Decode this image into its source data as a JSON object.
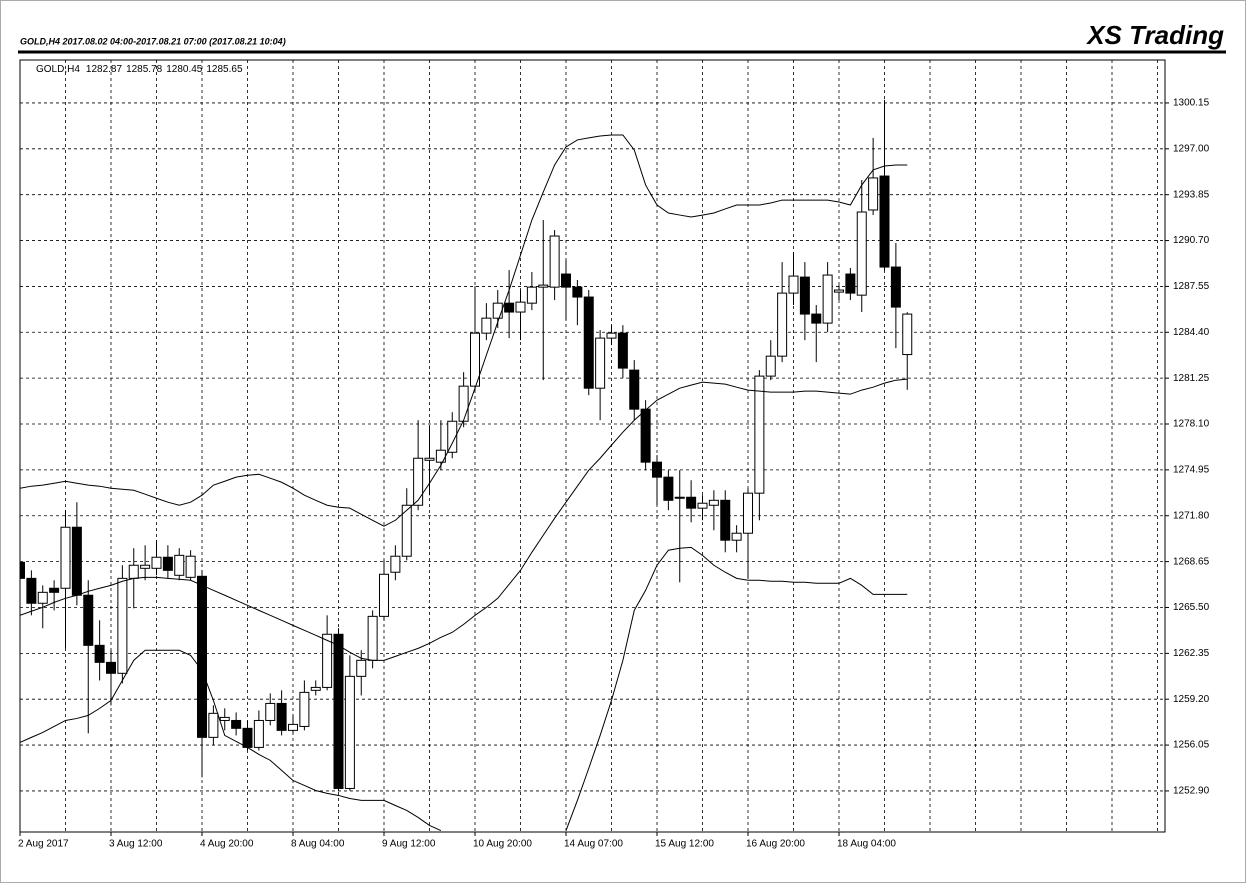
{
  "chart_data": {
    "type": "candlestick",
    "header": "GOLD,H4  2017.08.02 04:00-2017.08.21 07:00 (2017.08.21 10:04)",
    "brand": "XS Trading",
    "symbol": "GOLD,H4",
    "categories": [
      "2 Aug 2017",
      null,
      null,
      null,
      null,
      null,
      null,
      null,
      "3 Aug 12:00",
      null,
      null,
      null,
      null,
      null,
      null,
      null,
      "4 Aug 20:00",
      null,
      null,
      null,
      null,
      null,
      null,
      null,
      "8 Aug 04:00",
      null,
      null,
      null,
      null,
      null,
      null,
      null,
      "9 Aug 12:00",
      null,
      null,
      null,
      null,
      null,
      null,
      null,
      "10 Aug 20:00",
      null,
      null,
      null,
      null,
      null,
      null,
      null,
      "14 Aug 07:00",
      null,
      null,
      null,
      null,
      null,
      null,
      null,
      "15 Aug 12:00",
      null,
      null,
      null,
      null,
      null,
      null,
      null,
      "16 Aug 20:00",
      null,
      null,
      null,
      null,
      null,
      null,
      null,
      "18 Aug 04:00",
      null,
      null,
      null,
      null,
      null,
      null
    ],
    "open": [
      1268.6,
      1267.5,
      1265.79,
      1266.82,
      1266.82,
      1271.01,
      1266.34,
      1262.9,
      1261.73,
      1260.98,
      1267.5,
      1268.19,
      1268.19,
      1268.95,
      1267.71,
      1267.57,
      1267.64,
      1256.58,
      1257.74,
      1257.74,
      1257.2,
      1255.89,
      1257.74,
      1258.91,
      1257.06,
      1257.33,
      1259.81,
      1260.01,
      1263.66,
      1253.07,
      1260.77,
      1261.87,
      1264.89,
      1267.92,
      1269.02,
      1272.52,
      1275.61,
      1275.48,
      1276.16,
      1278.29,
      1280.7,
      1284.34,
      1285.37,
      1286.4,
      1285.79,
      1286.4,
      1287.5,
      1287.5,
      1288.4,
      1287.5,
      1286.82,
      1280.56,
      1284.0,
      1284.34,
      1281.8,
      1279.12,
      1275.48,
      1274.45,
      1273.0,
      1273.07,
      1272.32,
      1272.52,
      1272.86,
      1270.12,
      1270.6,
      1273.35,
      1281.39,
      1282.76,
      1287.09,
      1288.19,
      1285.65,
      1285.03,
      1287.16,
      1288.4,
      1286.95,
      1292.8,
      1295.13,
      1288.88,
      1282.87
    ],
    "high": [
      1269.08,
      1268.05,
      1267.02,
      1267.37,
      1272.18,
      1272.73,
      1267.37,
      1264.62,
      1262.56,
      1268.4,
      1269.57,
      1269.77,
      1270.12,
      1269.77,
      1269.57,
      1269.43,
      1268.05,
      1258.78,
      1258.57,
      1258.29,
      1257.74,
      1258.43,
      1259.6,
      1259.81,
      1258.09,
      1260.49,
      1260.49,
      1264.96,
      1264.07,
      1262.21,
      1262.56,
      1265.3,
      1268.74,
      1269.77,
      1273.69,
      1278.36,
      1278.02,
      1278.36,
      1278.91,
      1281.66,
      1287.57,
      1286.4,
      1287.3,
      1288.67,
      1287.3,
      1288.54,
      1292.11,
      1291.42,
      1289.36,
      1287.99,
      1287.3,
      1284.55,
      1284.89,
      1284.89,
      1282.49,
      1279.74,
      1275.96,
      1274.93,
      1274.93,
      1274.24,
      1273.21,
      1273.55,
      1273.55,
      1271.15,
      1273.69,
      1281.8,
      1283.86,
      1289.22,
      1289.91,
      1289.22,
      1286.27,
      1289.22,
      1287.64,
      1288.81,
      1294.86,
      1297.75,
      1300.36,
      1290.53,
      1285.78
    ],
    "low": [
      1265.99,
      1264.96,
      1264.07,
      1265.3,
      1262.69,
      1265.65,
      1256.85,
      1260.49,
      1258.78,
      1260.29,
      1265.44,
      1267.37,
      1267.71,
      1267.5,
      1267.37,
      1267.37,
      1253.83,
      1256.03,
      1257.06,
      1256.71,
      1255.68,
      1255.68,
      1257.4,
      1256.71,
      1256.85,
      1257.06,
      1259.46,
      1259.81,
      1252.93,
      1252.93,
      1259.46,
      1261.32,
      1264.62,
      1267.37,
      1268.74,
      1272.18,
      1273.21,
      1274.93,
      1275.75,
      1277.88,
      1280.43,
      1283.86,
      1284.69,
      1284.0,
      1283.86,
      1285.92,
      1281.11,
      1286.61,
      1285.24,
      1284.89,
      1280.08,
      1278.36,
      1283.52,
      1281.25,
      1278.36,
      1274.93,
      1272.52,
      1272.18,
      1267.23,
      1271.35,
      1271.49,
      1270.8,
      1269.29,
      1269.29,
      1267.5,
      1271.49,
      1281.11,
      1282.35,
      1286.27,
      1283.86,
      1282.35,
      1284.41,
      1286.61,
      1286.61,
      1285.79,
      1292.45,
      1288.67,
      1283.31,
      1280.45
    ],
    "close": [
      1267.5,
      1265.79,
      1266.54,
      1266.54,
      1271.01,
      1266.34,
      1262.9,
      1261.73,
      1260.98,
      1267.5,
      1268.4,
      1268.4,
      1268.95,
      1268.05,
      1269.08,
      1269.02,
      1256.58,
      1258.23,
      1257.95,
      1257.2,
      1255.89,
      1257.74,
      1258.91,
      1257.06,
      1257.47,
      1259.67,
      1260.01,
      1263.66,
      1253.07,
      1260.77,
      1261.87,
      1264.89,
      1267.78,
      1269.02,
      1272.52,
      1275.75,
      1275.75,
      1276.3,
      1278.29,
      1280.7,
      1284.34,
      1285.37,
      1286.4,
      1285.79,
      1286.47,
      1287.5,
      1287.64,
      1291.01,
      1287.5,
      1286.82,
      1280.56,
      1284.0,
      1284.34,
      1281.94,
      1279.12,
      1275.48,
      1274.45,
      1272.86,
      1273.07,
      1272.32,
      1272.66,
      1272.86,
      1270.12,
      1270.6,
      1273.35,
      1281.39,
      1282.76,
      1287.09,
      1288.26,
      1285.65,
      1285.03,
      1288.33,
      1287.3,
      1287.09,
      1292.66,
      1295.0,
      1288.88,
      1286.13,
      1285.65
    ],
    "up_color": "#ffffff",
    "down_color": "#000000",
    "overlays": [
      {
        "color": "#000000",
        "values": [
          1273.69,
          1273.83,
          1273.9,
          1274.03,
          1274.17,
          1274.03,
          1273.9,
          1273.83,
          1273.69,
          1273.62,
          1273.55,
          1273.28,
          1273.0,
          1272.73,
          1272.52,
          1272.73,
          1273.21,
          1273.9,
          1274.17,
          1274.45,
          1274.58,
          1274.65,
          1274.38,
          1274.1,
          1273.69,
          1273.21,
          1272.86,
          1272.52,
          1272.38,
          1272.32,
          1271.9,
          1271.49,
          1271.08,
          1271.49,
          1272.18,
          1272.86,
          1274.03,
          1275.27,
          1276.78,
          1278.36,
          1280.56,
          1282.83,
          1285.1,
          1287.3,
          1289.7,
          1292.11,
          1294.03,
          1295.89,
          1297.13,
          1297.61,
          1297.75,
          1297.88,
          1297.95,
          1297.95,
          1296.92,
          1294.51,
          1293.14,
          1292.59,
          1292.45,
          1292.32,
          1292.45,
          1292.59,
          1292.87,
          1293.14,
          1293.14,
          1293.14,
          1293.28,
          1293.48,
          1293.48,
          1293.48,
          1293.48,
          1293.48,
          1293.35,
          1293.14,
          1294.51,
          1295.55,
          1295.82,
          1295.89,
          1295.89
        ]
      },
      {
        "color": "#000000",
        "values": [
          1264.96,
          1265.24,
          1265.51,
          1265.85,
          1266.13,
          1266.34,
          1266.61,
          1266.82,
          1267.02,
          1267.3,
          1267.5,
          1267.57,
          1267.57,
          1267.5,
          1267.44,
          1267.37,
          1267.02,
          1266.68,
          1266.34,
          1265.99,
          1265.65,
          1265.3,
          1264.96,
          1264.62,
          1264.27,
          1263.93,
          1263.59,
          1263.24,
          1262.9,
          1262.42,
          1262.01,
          1261.87,
          1261.87,
          1262.14,
          1262.42,
          1262.69,
          1263.04,
          1263.45,
          1263.79,
          1264.34,
          1264.96,
          1265.51,
          1266.13,
          1267.09,
          1268.05,
          1269.29,
          1270.46,
          1271.63,
          1272.73,
          1273.83,
          1274.93,
          1275.75,
          1276.65,
          1277.54,
          1278.36,
          1279.05,
          1279.74,
          1280.15,
          1280.56,
          1280.77,
          1280.98,
          1280.91,
          1280.84,
          1280.63,
          1280.43,
          1280.36,
          1280.29,
          1280.29,
          1280.29,
          1280.36,
          1280.36,
          1280.29,
          1280.22,
          1280.15,
          1280.43,
          1280.63,
          1280.91,
          1281.11,
          1281.18
        ]
      },
      {
        "color": "#000000",
        "values": [
          1256.23,
          1256.58,
          1256.92,
          1257.33,
          1257.74,
          1257.88,
          1258.09,
          1258.57,
          1259.12,
          1260.49,
          1261.87,
          1262.56,
          1262.56,
          1262.56,
          1262.56,
          1262.21,
          1261.18,
          1259.12,
          1256.71,
          1256.3,
          1255.89,
          1255.41,
          1255.0,
          1254.31,
          1253.62,
          1253.28,
          1252.93,
          1252.73,
          1252.59,
          1252.38,
          1252.25,
          1252.25,
          1252.25,
          1251.9,
          1251.56,
          1251.08,
          1250.53,
          1250.18,
          null,
          null,
          null,
          null,
          null,
          null,
          null,
          null,
          null,
          null,
          1250.18,
          1252.25,
          1254.45,
          1256.71,
          1259.12,
          1261.87,
          1265.3,
          1266.68,
          1268.4,
          1269.43,
          1269.57,
          1269.63,
          1269.08,
          1268.4,
          1267.92,
          1267.5,
          1267.37,
          1267.37,
          1267.3,
          1267.3,
          1267.23,
          1267.23,
          1267.16,
          1267.16,
          1267.16,
          1267.5,
          1267.02,
          1266.4,
          1266.4,
          1266.4,
          1266.4
        ]
      }
    ],
    "ylim": [
      1250.08,
      1303.1
    ],
    "yticks": [
      1300.15,
      {
        "value": 1297,
        "label": "1297.00"
      },
      1293.85,
      {
        "value": 1290.7,
        "label": "1290.70"
      },
      1287.55,
      {
        "value": 1284.4,
        "label": "1284.40"
      },
      1281.25,
      {
        "value": 1278.1,
        "label": "1278.10"
      },
      1274.95,
      {
        "value": 1271.8,
        "label": "1271.80"
      },
      1268.65,
      {
        "value": 1265.5,
        "label": "1265.50"
      },
      1262.35,
      {
        "value": 1259.2,
        "label": "1259.20"
      },
      1256.05,
      {
        "value": 1252.9,
        "label": "1252.90"
      }
    ],
    "grid": true
  }
}
